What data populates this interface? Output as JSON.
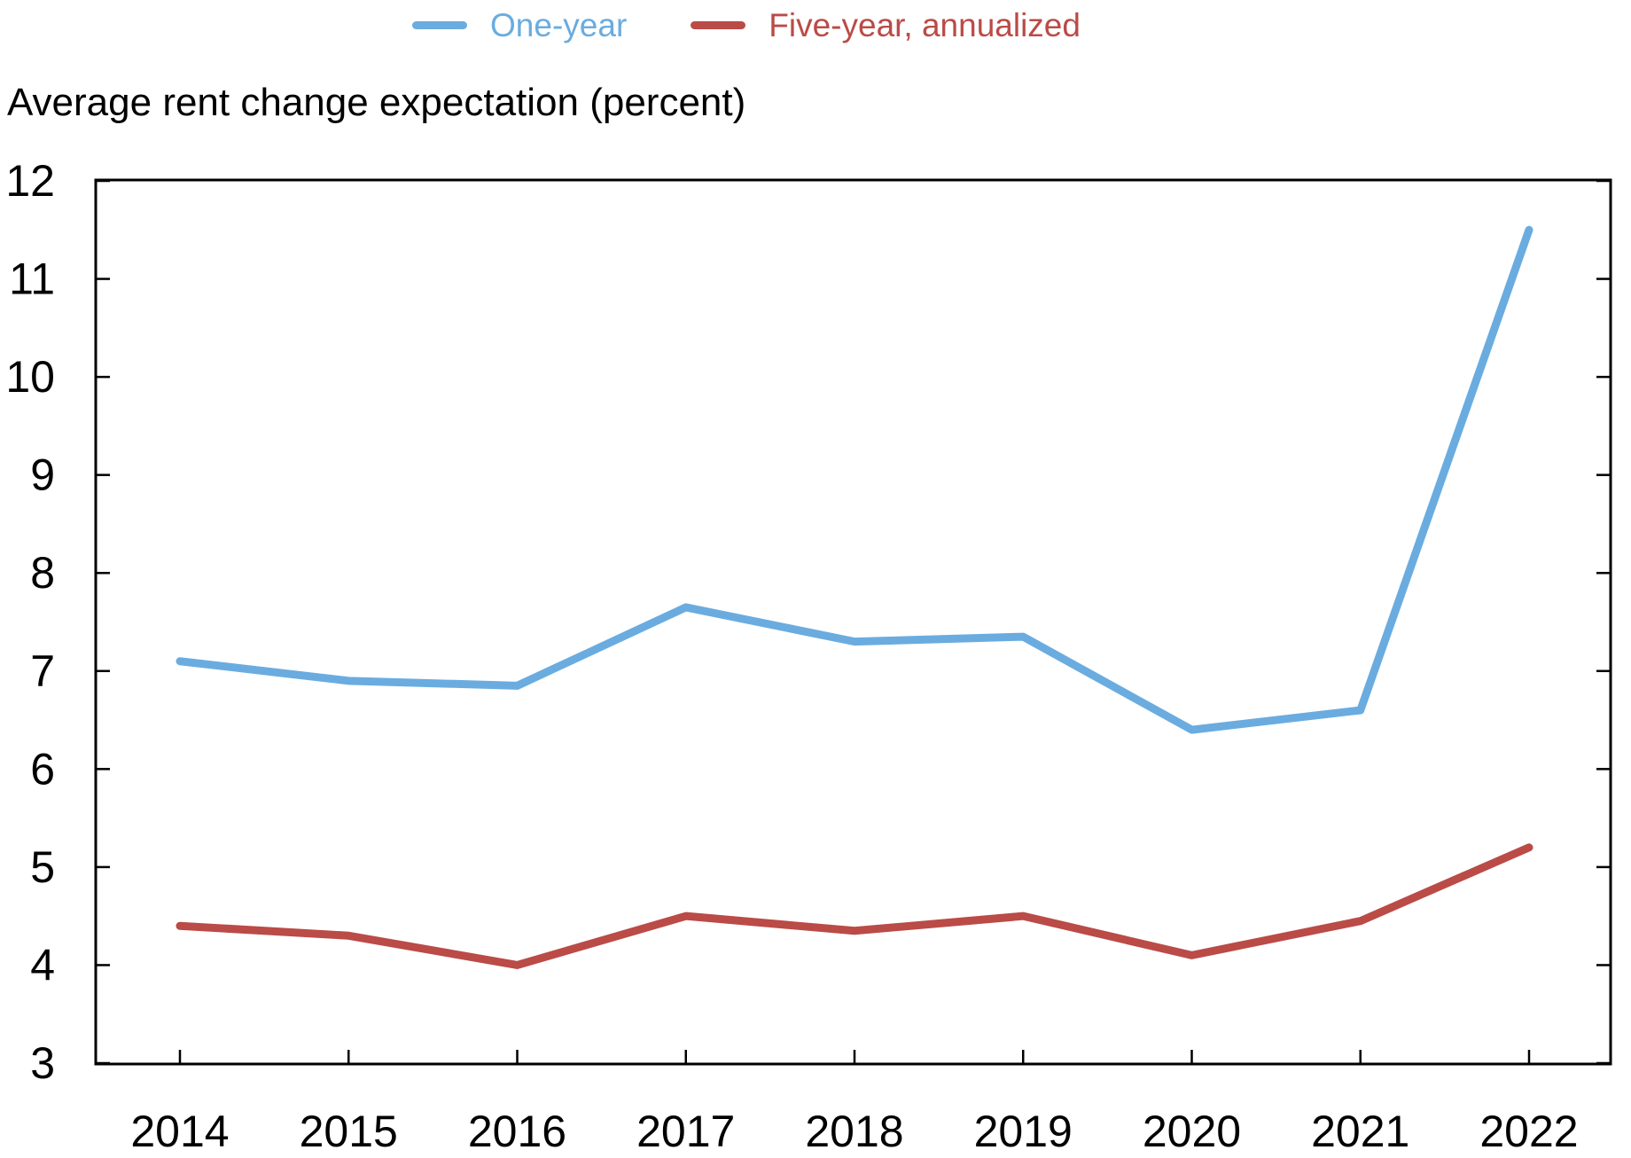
{
  "title": "Average rent change expectation (percent)",
  "legend": {
    "items": [
      {
        "label": "One-year",
        "color": "#6AACDF"
      },
      {
        "label": "Five-year, annualized",
        "color": "#BA4B47"
      }
    ]
  },
  "chart_data": {
    "type": "line",
    "x": [
      2014,
      2015,
      2016,
      2017,
      2018,
      2019,
      2020,
      2021,
      2022
    ],
    "series": [
      {
        "name": "One-year",
        "color": "#6AACDF",
        "values": [
          7.1,
          6.9,
          6.85,
          7.65,
          7.3,
          7.35,
          6.4,
          6.6,
          11.5
        ]
      },
      {
        "name": "Five-year, annualized",
        "color": "#BA4B47",
        "values": [
          4.4,
          4.3,
          4.0,
          4.5,
          4.35,
          4.5,
          4.1,
          4.45,
          5.2
        ]
      }
    ],
    "title": "Average rent change expectation (percent)",
    "xlabel": "",
    "ylabel": "Average rent change expectation (percent)",
    "ylim": [
      3,
      12
    ],
    "ytick_step": 1,
    "yticks": [
      3,
      4,
      5,
      6,
      7,
      8,
      9,
      10,
      11,
      12
    ],
    "grid": false,
    "legend_position": "top"
  }
}
